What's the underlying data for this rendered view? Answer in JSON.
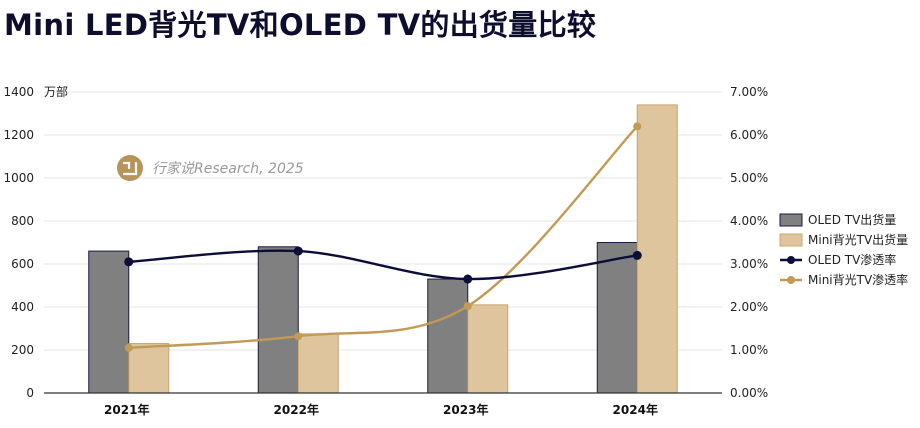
{
  "title": "Mini LED背光TV和OLED TV的出货量比较",
  "watermark": "行家说Research, 2025",
  "colors": {
    "oled_bar": "#808080",
    "oled_bar_edge": "#1a1a3e",
    "mini_bar": "#dec59e",
    "mini_bar_edge": "#c9a46a",
    "oled_line": "#0d0d3a",
    "mini_line": "#c29a55",
    "logo": "#b8935a",
    "grid": "#e4e4e4"
  },
  "chart_data": {
    "type": "bar",
    "categories": [
      "2021年",
      "2022年",
      "2023年",
      "2024年"
    ],
    "y_left": {
      "label": "万部",
      "ylim": [
        0,
        1400
      ],
      "ticks": [
        0,
        200,
        400,
        600,
        800,
        1000,
        1200,
        1400
      ]
    },
    "y_right": {
      "ylim": [
        0,
        7
      ],
      "ticks": [
        "0.00%",
        "1.00%",
        "2.00%",
        "3.00%",
        "4.00%",
        "5.00%",
        "6.00%",
        "7.00%"
      ]
    },
    "series": [
      {
        "name": "OLED TV出货量",
        "kind": "bar",
        "axis": "left",
        "values": [
          660,
          680,
          530,
          700
        ]
      },
      {
        "name": "Mini背光TV出货量",
        "kind": "bar",
        "axis": "left",
        "values": [
          230,
          275,
          410,
          1340
        ]
      },
      {
        "name": "OLED TV渗透率",
        "kind": "line",
        "axis": "right",
        "values": [
          3.05,
          3.3,
          2.65,
          3.2
        ]
      },
      {
        "name": "Mini背光TV渗透率",
        "kind": "line",
        "axis": "right",
        "values": [
          1.05,
          1.32,
          2.02,
          6.2
        ]
      }
    ],
    "grid": true,
    "legend": "right"
  }
}
